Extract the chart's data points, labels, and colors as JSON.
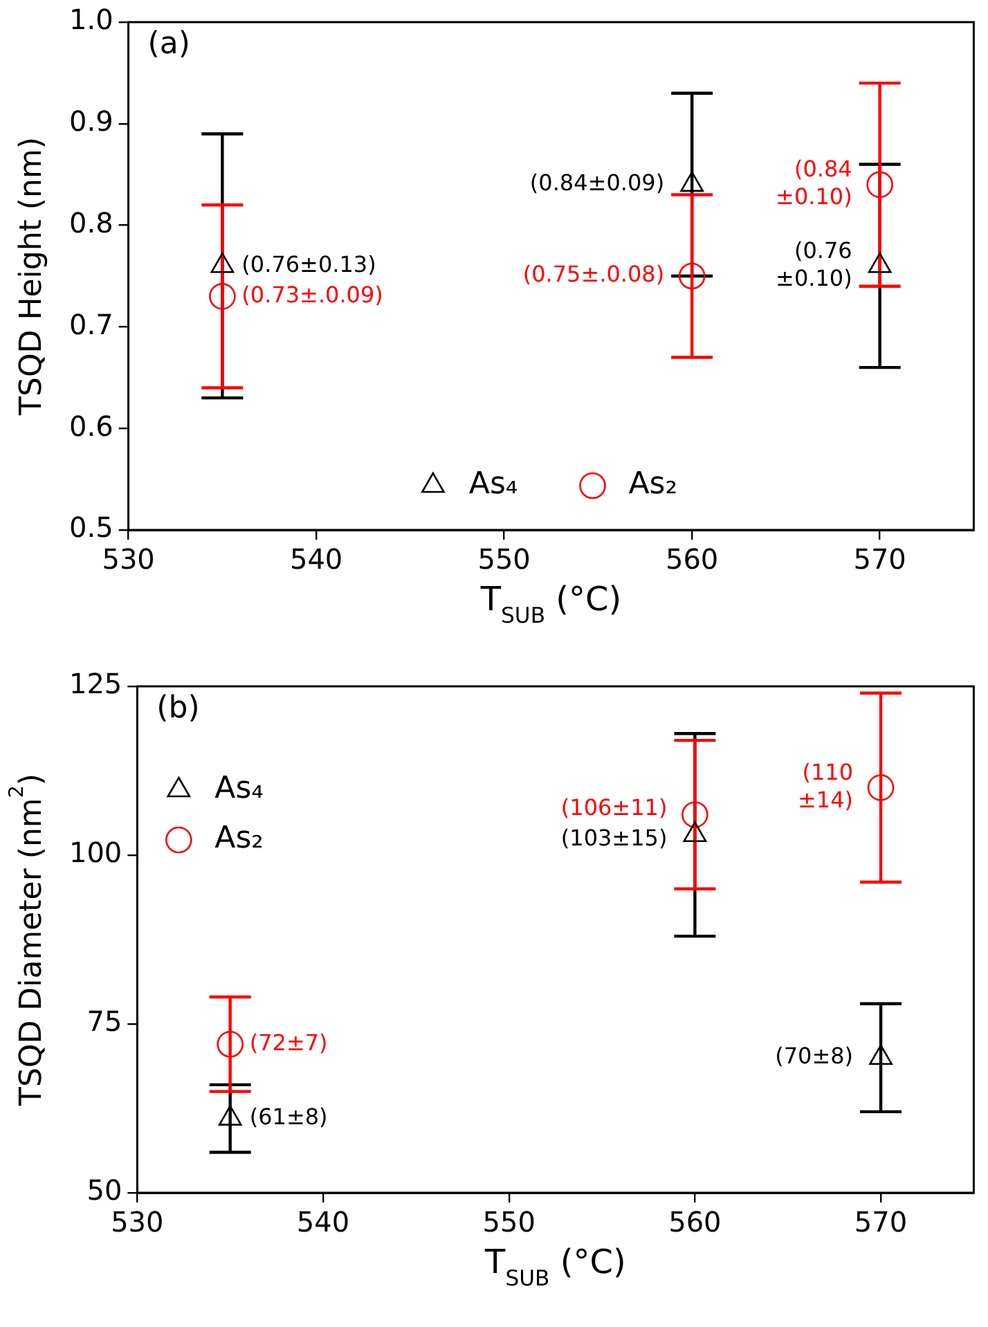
{
  "chart_data": [
    {
      "type": "scatter",
      "annotations": [
        "(a)"
      ],
      "xlabel": "T$_{SUB}$ (°C)",
      "ylabel": "TSQD Height (nm)",
      "xlim": [
        530,
        575
      ],
      "xticks": [
        530,
        540,
        550,
        560,
        570
      ],
      "ylim": [
        0.5,
        1.0
      ],
      "yticks": [
        0.5,
        0.6,
        0.7,
        0.8,
        0.9,
        {
          "value": 1.0,
          "label": "1.0"
        }
      ],
      "legend": "bottom",
      "grid": false,
      "x": [
        535,
        560,
        570
      ],
      "series": [
        {
          "name": "As₄",
          "color": "#000000",
          "marker": "triangle",
          "values": [
            0.76,
            0.84,
            0.76
          ],
          "errors": [
            0.13,
            0.09,
            0.1
          ],
          "value_labels": [
            "(0.76±0.13)",
            "(0.84±0.09)",
            "(0.76\n±0.10)"
          ]
        },
        {
          "name": "As₂",
          "color": "#ff0000",
          "marker": "circle",
          "values": [
            0.73,
            0.75,
            0.84
          ],
          "errors": [
            0.09,
            0.08,
            0.1
          ],
          "value_labels": [
            "(0.73±.0.09)",
            "(0.75±.0.08)",
            "(0.84\n±0.10)"
          ]
        }
      ]
    },
    {
      "type": "scatter",
      "annotations": [
        "(b)"
      ],
      "xlabel": "T$_{SUB}$ (°C)",
      "ylabel": "TSQD Diameter (nm$^{2}$)",
      "xlim": [
        530,
        575
      ],
      "xticks": [
        530,
        540,
        550,
        560,
        570
      ],
      "ylim": [
        50,
        125
      ],
      "yticks": [
        50,
        75,
        100,
        125
      ],
      "legend": "top left",
      "grid": false,
      "x": [
        535,
        560,
        570
      ],
      "series": [
        {
          "name": "As₄",
          "color": "#000000",
          "marker": "triangle",
          "values": [
            61,
            103,
            70
          ],
          "errors": [
            5,
            15,
            8
          ],
          "value_labels": [
            "(61±8)",
            "(103±15)",
            "(70±8)"
          ]
        },
        {
          "name": "As₂",
          "color": "#ff0000",
          "marker": "circle",
          "values": [
            72,
            106,
            110
          ],
          "errors": [
            7,
            11,
            14
          ],
          "value_labels": [
            "(72±7)",
            "(106±11)",
            "(110\n±14)"
          ]
        }
      ]
    }
  ]
}
